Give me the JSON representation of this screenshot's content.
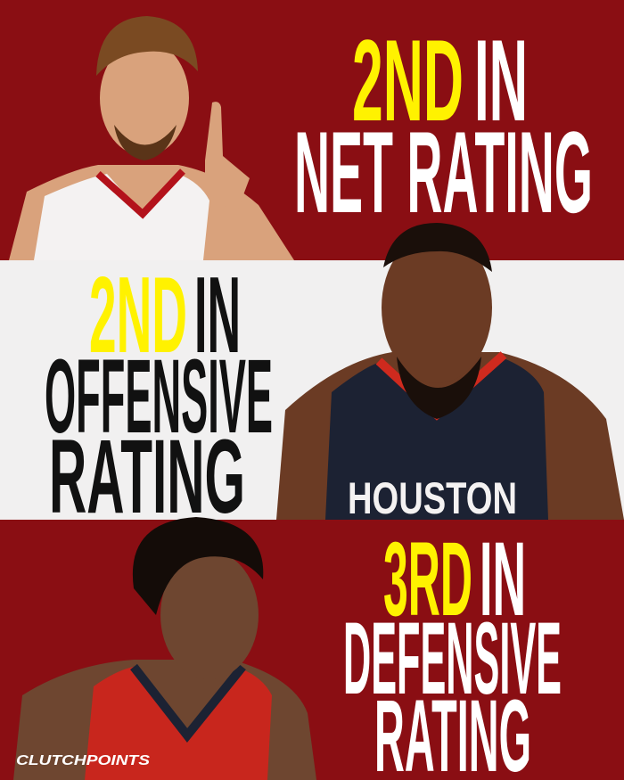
{
  "panels": [
    {
      "highlight": "2ND",
      "word": "IN",
      "lines": [
        "NET RATING"
      ]
    },
    {
      "highlight": "2ND",
      "word": "IN",
      "lines": [
        "OFFENSIVE",
        "RATING"
      ]
    },
    {
      "highlight": "3RD",
      "word": "IN",
      "lines": [
        "DEFENSIVE",
        "RATING"
      ]
    }
  ],
  "jersey": "HOUSTON",
  "watermark": "CLUTCHPOINTS"
}
